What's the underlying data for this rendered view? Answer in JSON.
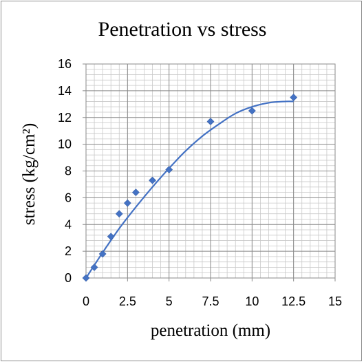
{
  "chart_data": {
    "type": "scatter",
    "title": "Penetration vs stress",
    "xlabel": "penetration (mm)",
    "ylabel": "stress (kg/cm²)",
    "xlim": [
      0,
      15
    ],
    "ylim": [
      0,
      16
    ],
    "x_ticks": [
      0,
      2.5,
      5,
      7.5,
      10,
      12.5,
      15
    ],
    "x_tick_labels": [
      "0",
      "2.5",
      "5",
      "7.5",
      "10",
      "12.5",
      "15"
    ],
    "y_ticks": [
      0,
      2,
      4,
      6,
      8,
      10,
      12,
      14,
      16
    ],
    "y_tick_labels": [
      "0",
      "2",
      "4",
      "6",
      "8",
      "10",
      "12",
      "14",
      "16"
    ],
    "grid": true,
    "minor_grid": true,
    "legend": "none",
    "marker": "diamond",
    "color": "#4472c4",
    "trendline": "smooth curve",
    "points": [
      {
        "x": 0,
        "y": 0
      },
      {
        "x": 0.5,
        "y": 0.8
      },
      {
        "x": 1,
        "y": 1.8
      },
      {
        "x": 1.5,
        "y": 3.1
      },
      {
        "x": 2,
        "y": 4.8
      },
      {
        "x": 2.5,
        "y": 5.6
      },
      {
        "x": 3,
        "y": 6.4
      },
      {
        "x": 4,
        "y": 7.3
      },
      {
        "x": 5,
        "y": 8.1
      },
      {
        "x": 7.5,
        "y": 11.7
      },
      {
        "x": 10,
        "y": 12.5
      },
      {
        "x": 12.5,
        "y": 13.5
      }
    ],
    "trend_curve": [
      {
        "x": 0,
        "y": 0
      },
      {
        "x": 1,
        "y": 1.9
      },
      {
        "x": 2,
        "y": 3.7
      },
      {
        "x": 3,
        "y": 5.3
      },
      {
        "x": 4,
        "y": 6.8
      },
      {
        "x": 5,
        "y": 8.2
      },
      {
        "x": 6,
        "y": 9.5
      },
      {
        "x": 7,
        "y": 10.6
      },
      {
        "x": 8,
        "y": 11.5
      },
      {
        "x": 9,
        "y": 12.3
      },
      {
        "x": 10,
        "y": 12.8
      },
      {
        "x": 11,
        "y": 13.1
      },
      {
        "x": 12,
        "y": 13.2
      },
      {
        "x": 12.5,
        "y": 13.2
      }
    ]
  }
}
